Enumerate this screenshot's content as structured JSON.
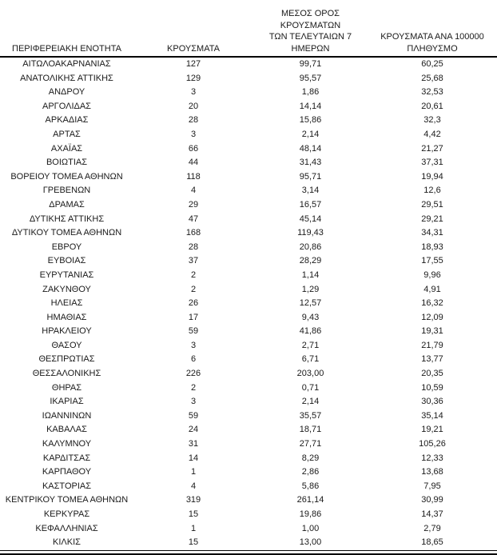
{
  "colors": {
    "background": "#ffffff",
    "text": "#1a1a1a",
    "rule": "#000000"
  },
  "table": {
    "columns": [
      {
        "id": "region",
        "label_lines": [
          "ΠΕΡΙΦΕΡΕΙΑΚΗ ΕΝΟΤΗΤΑ"
        ]
      },
      {
        "id": "cases",
        "label_lines": [
          "ΚΡΟΥΣΜΑΤΑ"
        ]
      },
      {
        "id": "avg7",
        "label_lines": [
          "ΜΕΣΟΣ ΟΡΟΣ ΚΡΟΥΣΜΑΤΩΝ",
          "ΤΩΝ ΤΕΛΕΥΤΑΙΩΝ 7",
          "ΗΜΕΡΩΝ"
        ]
      },
      {
        "id": "per100k",
        "label_lines": [
          "ΚΡΟΥΣΜΑΤΑ ΑΝΑ 100000",
          "ΠΛΗΘΥΣΜΟ"
        ]
      }
    ],
    "rows": [
      [
        "ΑΙΤΩΛΟΑΚΑΡΝΑΝΙΑΣ",
        "127",
        "99,71",
        "60,25"
      ],
      [
        "ΑΝΑΤΟΛΙΚΗΣ ΑΤΤΙΚΗΣ",
        "129",
        "95,57",
        "25,68"
      ],
      [
        "ΑΝΔΡΟΥ",
        "3",
        "1,86",
        "32,53"
      ],
      [
        "ΑΡΓΟΛΙΔΑΣ",
        "20",
        "14,14",
        "20,61"
      ],
      [
        "ΑΡΚΑΔΙΑΣ",
        "28",
        "15,86",
        "32,3"
      ],
      [
        "ΑΡΤΑΣ",
        "3",
        "2,14",
        "4,42"
      ],
      [
        "ΑΧΑΪΑΣ",
        "66",
        "48,14",
        "21,27"
      ],
      [
        "ΒΟΙΩΤΙΑΣ",
        "44",
        "31,43",
        "37,31"
      ],
      [
        "ΒΟΡΕΙΟΥ ΤΟΜΕΑ ΑΘΗΝΩΝ",
        "118",
        "95,71",
        "19,94"
      ],
      [
        "ΓΡΕΒΕΝΩΝ",
        "4",
        "3,14",
        "12,6"
      ],
      [
        "ΔΡΑΜΑΣ",
        "29",
        "16,57",
        "29,51"
      ],
      [
        "ΔΥΤΙΚΗΣ ΑΤΤΙΚΗΣ",
        "47",
        "45,14",
        "29,21"
      ],
      [
        "ΔΥΤΙΚΟΥ ΤΟΜΕΑ ΑΘΗΝΩΝ",
        "168",
        "119,43",
        "34,31"
      ],
      [
        "ΕΒΡΟΥ",
        "28",
        "20,86",
        "18,93"
      ],
      [
        "ΕΥΒΟΙΑΣ",
        "37",
        "28,29",
        "17,55"
      ],
      [
        "ΕΥΡΥΤΑΝΙΑΣ",
        "2",
        "1,14",
        "9,96"
      ],
      [
        "ΖΑΚΥΝΘΟΥ",
        "2",
        "1,29",
        "4,91"
      ],
      [
        "ΗΛΕΙΑΣ",
        "26",
        "12,57",
        "16,32"
      ],
      [
        "ΗΜΑΘΙΑΣ",
        "17",
        "9,43",
        "12,09"
      ],
      [
        "ΗΡΑΚΛΕΙΟΥ",
        "59",
        "41,86",
        "19,31"
      ],
      [
        "ΘΑΣΟΥ",
        "3",
        "2,71",
        "21,79"
      ],
      [
        "ΘΕΣΠΡΩΤΙΑΣ",
        "6",
        "6,71",
        "13,77"
      ],
      [
        "ΘΕΣΣΑΛΟΝΙΚΗΣ",
        "226",
        "203,00",
        "20,35"
      ],
      [
        "ΘΗΡΑΣ",
        "2",
        "0,71",
        "10,59"
      ],
      [
        "ΙΚΑΡΙΑΣ",
        "3",
        "2,14",
        "30,36"
      ],
      [
        "ΙΩΑΝΝΙΝΩΝ",
        "59",
        "35,57",
        "35,14"
      ],
      [
        "ΚΑΒΑΛΑΣ",
        "24",
        "18,71",
        "19,21"
      ],
      [
        "ΚΑΛΥΜΝΟΥ",
        "31",
        "27,71",
        "105,26"
      ],
      [
        "ΚΑΡΔΙΤΣΑΣ",
        "14",
        "8,29",
        "12,33"
      ],
      [
        "ΚΑΡΠΑΘΟΥ",
        "1",
        "2,86",
        "13,68"
      ],
      [
        "ΚΑΣΤΟΡΙΑΣ",
        "4",
        "5,86",
        "7,95"
      ],
      [
        "ΚΕΝΤΡΙΚΟΥ ΤΟΜΕΑ ΑΘΗΝΩΝ",
        "319",
        "261,14",
        "30,99"
      ],
      [
        "ΚΕΡΚΥΡΑΣ",
        "15",
        "19,86",
        "14,37"
      ],
      [
        "ΚΕΦΑΛΛΗΝΙΑΣ",
        "1",
        "1,00",
        "2,79"
      ],
      [
        "ΚΙΛΚΙΣ",
        "15",
        "13,00",
        "18,65"
      ]
    ]
  }
}
